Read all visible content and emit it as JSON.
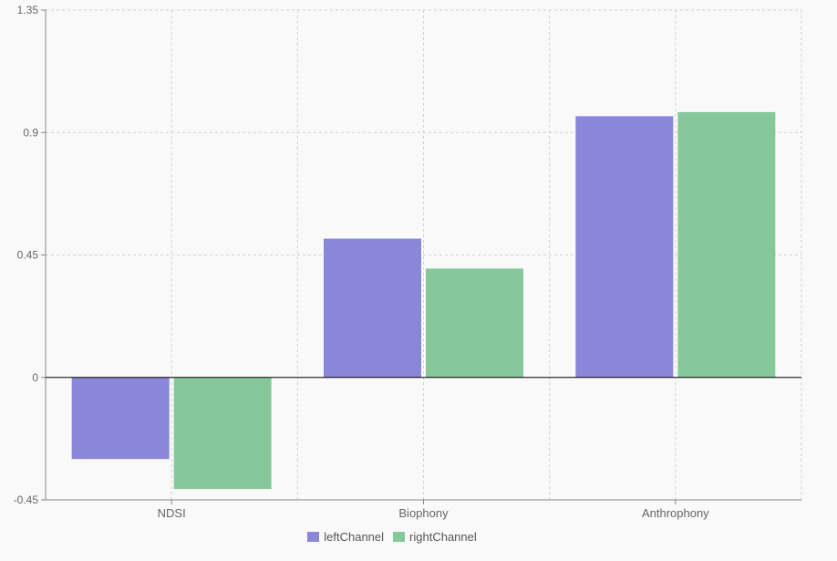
{
  "chart_data": {
    "type": "bar",
    "categories": [
      "NDSI",
      "Biophony",
      "Anthrophony"
    ],
    "series": [
      {
        "name": "leftChannel",
        "values": [
          -0.3,
          0.51,
          0.96
        ],
        "color": "#8a86d9"
      },
      {
        "name": "rightChannel",
        "values": [
          -0.41,
          0.4,
          0.975
        ],
        "color": "#85c99b"
      }
    ],
    "ylim": [
      -0.45,
      1.35
    ],
    "yticks": [
      "-0.45",
      "0",
      "0.45",
      "0.9",
      "1.35"
    ],
    "ytick_values": [
      -0.45,
      0,
      0.45,
      0.9,
      1.35
    ],
    "grid": true,
    "legend_position": "bottom-center"
  }
}
